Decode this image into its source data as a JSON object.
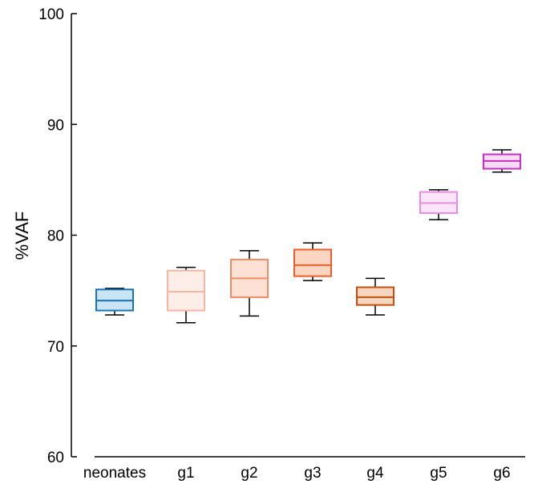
{
  "chart_data": {
    "type": "box",
    "title": "",
    "xlabel": "",
    "ylabel": "%VAF",
    "ylim": [
      60,
      100
    ],
    "yticks": [
      60,
      70,
      80,
      90,
      100
    ],
    "grid": false,
    "categories": [
      "neonates",
      "g1",
      "g2",
      "g3",
      "g4",
      "g5",
      "g6"
    ],
    "boxes": [
      {
        "category": "neonates",
        "min": 72.8,
        "q1": 73.2,
        "median": 74.1,
        "q3": 75.1,
        "max": 75.2,
        "edge_color": "#1a73b8",
        "fill_color": "#c9e4f5"
      },
      {
        "category": "g1",
        "min": 72.1,
        "q1": 73.2,
        "median": 74.9,
        "q3": 76.8,
        "max": 77.1,
        "edge_color": "#f6b7a1",
        "fill_color": "#fdeee8"
      },
      {
        "category": "g2",
        "min": 72.7,
        "q1": 74.4,
        "median": 76.1,
        "q3": 77.8,
        "max": 78.6,
        "edge_color": "#f08b63",
        "fill_color": "#fde1d4"
      },
      {
        "category": "g3",
        "min": 75.9,
        "q1": 76.3,
        "median": 77.3,
        "q3": 78.7,
        "max": 79.3,
        "edge_color": "#e8602c",
        "fill_color": "#fbd5c1"
      },
      {
        "category": "g4",
        "min": 72.8,
        "q1": 73.7,
        "median": 74.4,
        "q3": 75.3,
        "max": 76.1,
        "edge_color": "#c4500f",
        "fill_color": "#f7d6bf"
      },
      {
        "category": "g5",
        "min": 81.4,
        "q1": 82.0,
        "median": 82.9,
        "q3": 83.9,
        "max": 84.1,
        "edge_color": "#e98be3",
        "fill_color": "#fbe6f9"
      },
      {
        "category": "g6",
        "min": 85.7,
        "q1": 86.0,
        "median": 86.7,
        "q3": 87.3,
        "max": 87.7,
        "edge_color": "#c72ec2",
        "fill_color": "#f8dcf6"
      }
    ]
  }
}
